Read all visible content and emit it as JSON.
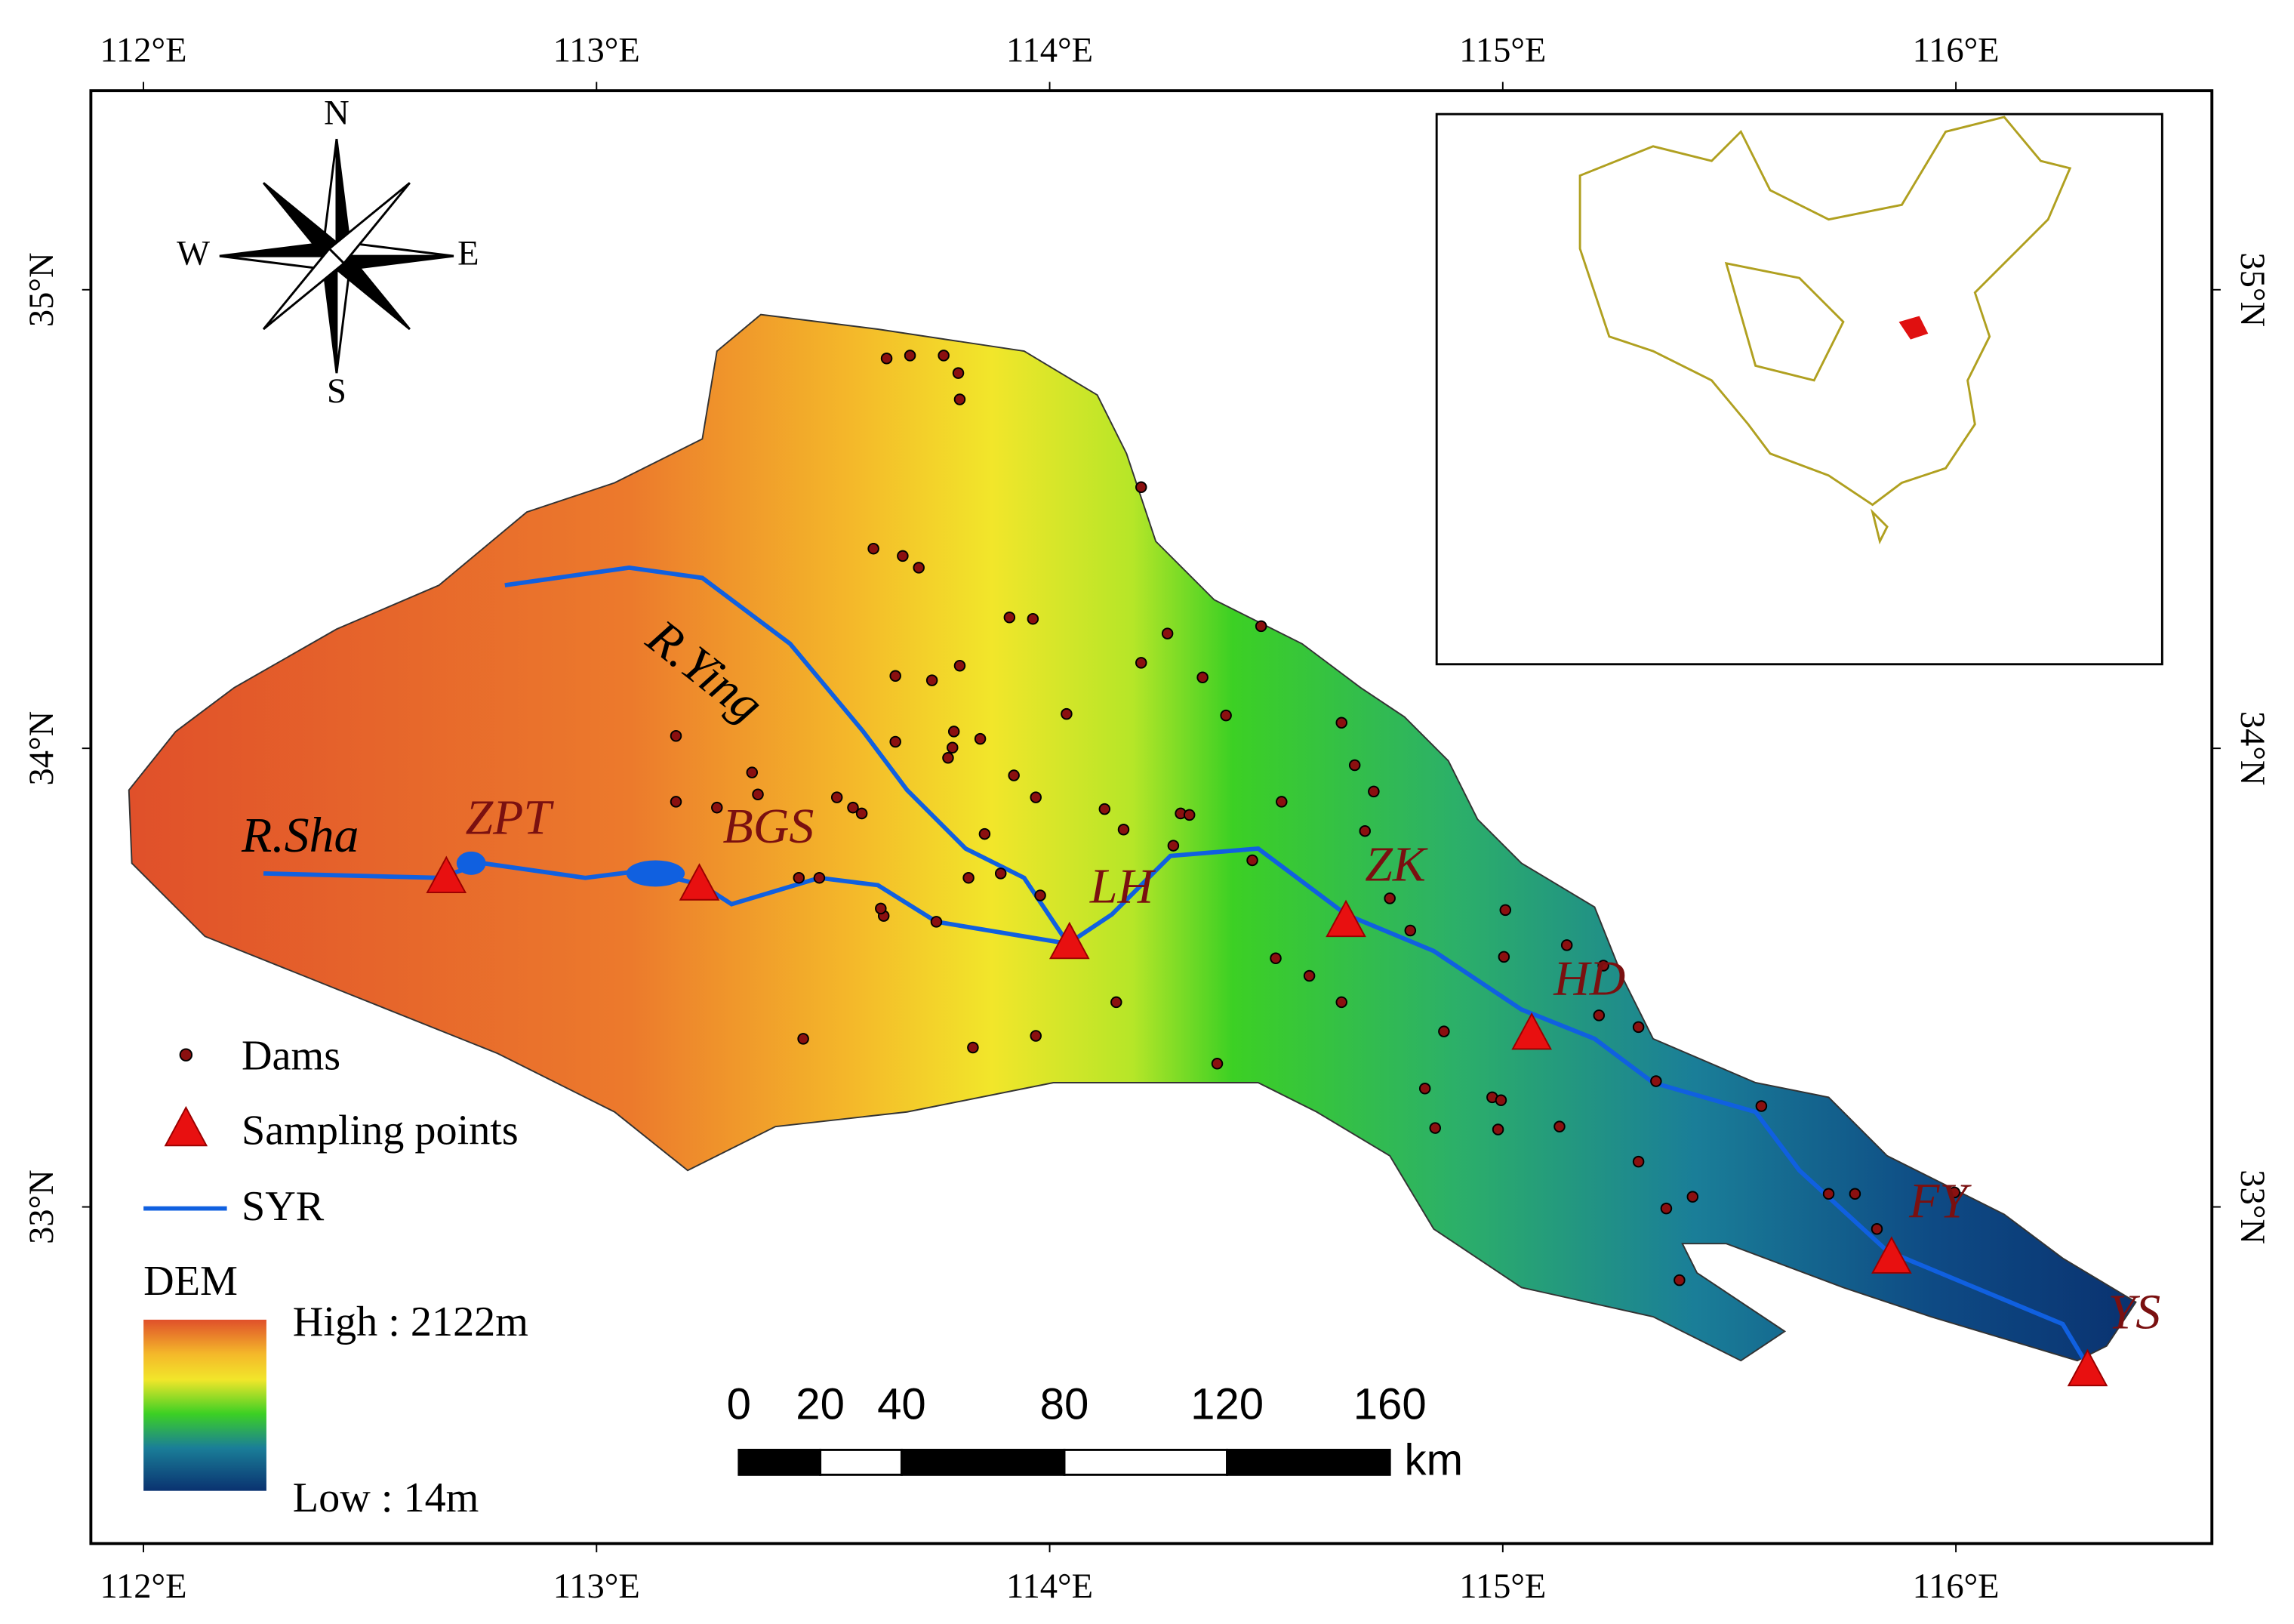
{
  "map": {
    "xlim": [
      111.884,
      116.565
    ],
    "ylim": [
      32.266,
      35.434
    ],
    "xticks": [
      {
        "value": 112,
        "label": "112°E"
      },
      {
        "value": 113,
        "label": "113°E"
      },
      {
        "value": 114,
        "label": "114°E"
      },
      {
        "value": 115,
        "label": "115°E"
      },
      {
        "value": 116,
        "label": "116°E"
      }
    ],
    "yticks": [
      {
        "value": 33,
        "label": "33°N"
      },
      {
        "value": 34,
        "label": "34°N"
      },
      {
        "value": 35,
        "label": "35°N"
      }
    ],
    "compass": {
      "north": "N",
      "south": "S",
      "west": "W",
      "east": "E"
    },
    "rivers": [
      "R.Sha",
      "R.Ying"
    ],
    "sites": [
      "ZPT",
      "BGS",
      "LH",
      "ZK",
      "HD",
      "FY",
      "YS"
    ],
    "legend": {
      "dams": "Dams",
      "sampling": "Sampling points",
      "river": "SYR"
    },
    "dem": {
      "title": "DEM",
      "high": "High : 2122m",
      "low": "Low : 14m"
    },
    "scale_bar": {
      "ticks": [
        0,
        20,
        40,
        80,
        120,
        160
      ],
      "unit": "km"
    }
  }
}
